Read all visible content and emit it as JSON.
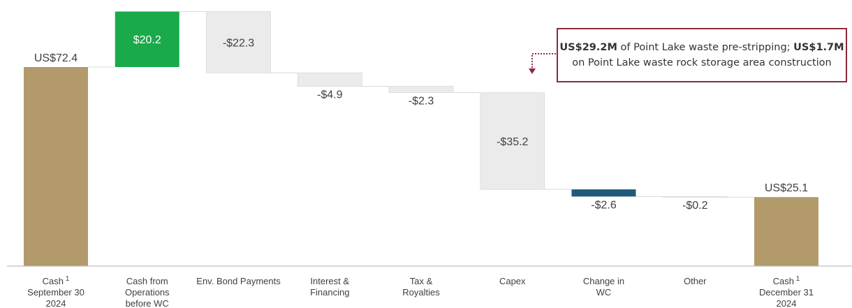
{
  "chart_data": {
    "type": "waterfall",
    "categories": [
      [
        "Cash",
        "September 30",
        "2024"
      ],
      [
        "Cash from",
        "Operations",
        "before WC"
      ],
      [
        "Env. Bond Payments"
      ],
      [
        "Interest &",
        "Financing"
      ],
      [
        "Tax &",
        "Royalties"
      ],
      [
        "Capex"
      ],
      [
        "Change in",
        "WC"
      ],
      [
        "Other"
      ],
      [
        "Cash",
        "December 31",
        "2024"
      ]
    ],
    "superscripts": [
      "1",
      "",
      "",
      "",
      "",
      "",
      "",
      "",
      "1"
    ],
    "values": [
      72.4,
      20.2,
      -22.3,
      -4.9,
      -2.3,
      -35.2,
      -2.6,
      -0.2,
      25.1
    ],
    "kinds": [
      "total",
      "delta",
      "delta",
      "delta",
      "delta",
      "delta",
      "delta",
      "delta",
      "total"
    ],
    "labels": [
      "US$72.4",
      "$20.2",
      "-$22.3",
      "-$4.9",
      "-$2.3",
      "-$35.2",
      "-$2.6",
      "-$0.2",
      "US$25.1"
    ],
    "colors": [
      "#b39a6b",
      "#1aaa4a",
      "#ebebeb",
      "#ebebeb",
      "#ebebeb",
      "#ebebeb",
      "#1f5a78",
      "#ebebeb",
      "#b39a6b"
    ],
    "ylim": [
      0,
      100
    ],
    "grid": false,
    "axis_color": "#bfbfbf",
    "accent_color": "#8b2a3f"
  },
  "callout": {
    "bold1": "US$29.2M",
    "text1": " of Point Lake waste pre-stripping; ",
    "bold2": "US$1.7M",
    "text2": "on Point Lake waste rock storage area construction"
  }
}
